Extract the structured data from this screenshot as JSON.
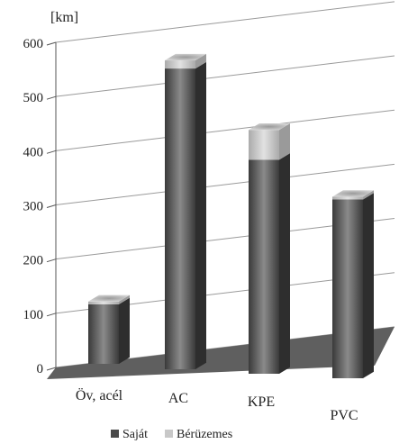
{
  "chart_data": {
    "type": "bar",
    "stacked": true,
    "three_d": true,
    "unit_label": "[km]",
    "categories": [
      "Öv, acél",
      "AC",
      "KPE",
      "PVC"
    ],
    "series": [
      {
        "name": "Saját",
        "values": [
          110,
          555,
          395,
          330
        ],
        "color": "#555555"
      },
      {
        "name": "Bérüzemes",
        "values": [
          5,
          15,
          55,
          5
        ],
        "color": "#c8c8c8"
      }
    ],
    "ylim": [
      0,
      600
    ],
    "yticks": [
      0,
      100,
      200,
      300,
      400,
      500,
      600
    ],
    "grid": true,
    "legend": "bottom"
  }
}
